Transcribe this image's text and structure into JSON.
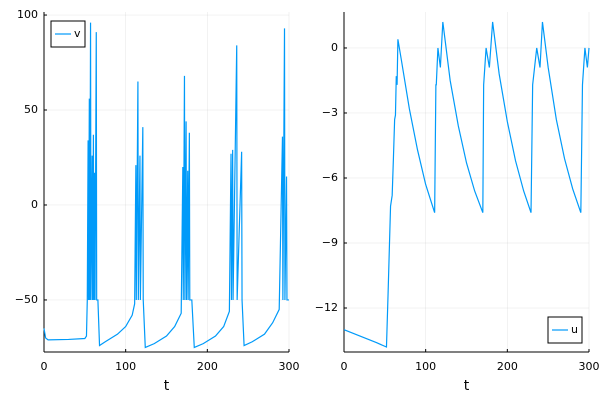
{
  "chart_data": [
    {
      "type": "line",
      "xlabel": "t",
      "xlim": [
        0,
        300
      ],
      "xticks": [
        0,
        100,
        200,
        300
      ],
      "ylim": [
        -77.4,
        101.6
      ],
      "yticks": [
        {
          "value": -50,
          "label": "−50"
        },
        0,
        50,
        100
      ],
      "grid": true,
      "legend": "top-left",
      "x": [
        0,
        2,
        5,
        30,
        50,
        52,
        53,
        54,
        54.5,
        55.5,
        56,
        57,
        57.5,
        59,
        59.5,
        60.5,
        61,
        62,
        62.5,
        64,
        64.5,
        66,
        68,
        75,
        90,
        100,
        108,
        111,
        112.5,
        113,
        115,
        115.5,
        117.5,
        118,
        121,
        121.5,
        124,
        135,
        150,
        160,
        168,
        170,
        170.5,
        172,
        172.5,
        174,
        174.5,
        176,
        176.5,
        178,
        178.5,
        181,
        184,
        195,
        210,
        220,
        227,
        229,
        229.5,
        231,
        231.5,
        236,
        236.5,
        242,
        242.5,
        245,
        255,
        270,
        280,
        288,
        292,
        292.5,
        294.5,
        295,
        297,
        297.5,
        300
      ],
      "series": [
        {
          "name": "v",
          "color": "#009af9",
          "values": [
            -65,
            -70,
            -71,
            -70.8,
            -70.3,
            -69,
            -50,
            34,
            -50,
            56,
            -50,
            96,
            -50,
            26,
            -50,
            37,
            -50,
            17,
            -50,
            91,
            -50,
            -50,
            -74,
            -72,
            -68,
            -64,
            -58,
            -52,
            21,
            -50,
            65,
            -50,
            26,
            -50,
            41,
            -50,
            -75,
            -73,
            -69,
            -64,
            -57,
            20,
            -50,
            68,
            -50,
            44,
            -50,
            18,
            -50,
            38,
            -50,
            -50,
            -75,
            -73,
            -69,
            -64,
            -56,
            27,
            -50,
            29,
            -50,
            84,
            -50,
            28,
            -50,
            -74,
            -72,
            -68,
            -62,
            -55,
            36,
            -50,
            93,
            -50,
            15,
            -50,
            -50
          ]
        }
      ]
    },
    {
      "type": "line",
      "xlabel": "t",
      "xlim": [
        0,
        300
      ],
      "xticks": [
        0,
        100,
        200,
        300
      ],
      "ylim": [
        -14.03,
        1.66
      ],
      "yticks": [
        {
          "value": -12,
          "label": "−12"
        },
        {
          "value": -9,
          "label": "−9"
        },
        {
          "value": -6,
          "label": "−6"
        },
        {
          "value": -3,
          "label": "−3"
        },
        0
      ],
      "grid": true,
      "legend": "bottom-right",
      "x": [
        0,
        20,
        40,
        52,
        54,
        55.5,
        57,
        59,
        60.5,
        62,
        63,
        64,
        65,
        66,
        70,
        80,
        90,
        100,
        111,
        112.5,
        113,
        115,
        118,
        121,
        130,
        140,
        150,
        160,
        170,
        171,
        174,
        178,
        182,
        190,
        200,
        210,
        220,
        229,
        231,
        236,
        240,
        243,
        250,
        260,
        270,
        280,
        290,
        292,
        295,
        298,
        300
      ],
      "series": [
        {
          "name": "u",
          "color": "#009af9",
          "values": [
            -13,
            -13.3,
            -13.6,
            -13.8,
            -11.3,
            -9.3,
            -7.3,
            -6.8,
            -5.1,
            -3.3,
            -3.1,
            -1.3,
            -1.7,
            0.4,
            -0.5,
            -2.8,
            -4.7,
            -6.3,
            -7.6,
            -1.7,
            -1.7,
            0,
            -0.9,
            1.2,
            -1.5,
            -3.6,
            -5.3,
            -6.6,
            -7.6,
            -1.7,
            0,
            -0.9,
            1.2,
            -1.2,
            -3.4,
            -5.2,
            -6.6,
            -7.6,
            -1.7,
            0,
            -0.9,
            1.2,
            -0.9,
            -3.3,
            -5.1,
            -6.5,
            -7.6,
            -1.7,
            0,
            -0.9,
            0
          ]
        }
      ]
    }
  ]
}
